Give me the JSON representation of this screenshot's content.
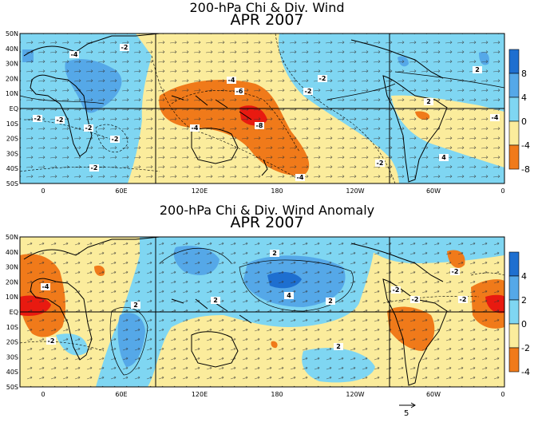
{
  "panels": [
    {
      "title": "200-hPa Chi & Div. Wind",
      "subtitle": "APR 2007",
      "colorbar_labels": [
        "8",
        "4",
        "0",
        "-4",
        "-8"
      ],
      "contour_labels": [
        "-4",
        "-2",
        "-2",
        "-2",
        "-2",
        "-2",
        "-2",
        "-4",
        "-6",
        "-8",
        "-4",
        "-2",
        "-2",
        "-2",
        "-4",
        "-4",
        "2",
        "4",
        "2"
      ]
    },
    {
      "title": "200-hPa Chi & Div. Wind Anomaly",
      "subtitle": "APR 2007",
      "colorbar_labels": [
        "4",
        "2",
        "0",
        "-2",
        "-4"
      ],
      "contour_labels": [
        "-4",
        "-2",
        "2",
        "2",
        "2",
        "4",
        "2",
        "-2",
        "-2",
        "-2",
        "2",
        "-2"
      ]
    }
  ],
  "lat_labels": [
    "50N",
    "40N",
    "30N",
    "20N",
    "10N",
    "EQ",
    "10S",
    "20S",
    "30S",
    "40S",
    "50S"
  ],
  "lon_labels": [
    "0",
    "60E",
    "120E",
    "180",
    "120W",
    "60W",
    "0"
  ],
  "reference_vector_label": "5",
  "colors": {
    "deep_blue": "#1e6fd0",
    "mid_blue": "#55a8e8",
    "light_blue": "#7fd6f2",
    "pale_cyan": "#b6ecf6",
    "pale_yellow": "#fbec9c",
    "orange": "#f07a1a",
    "red": "#e81a10"
  }
}
